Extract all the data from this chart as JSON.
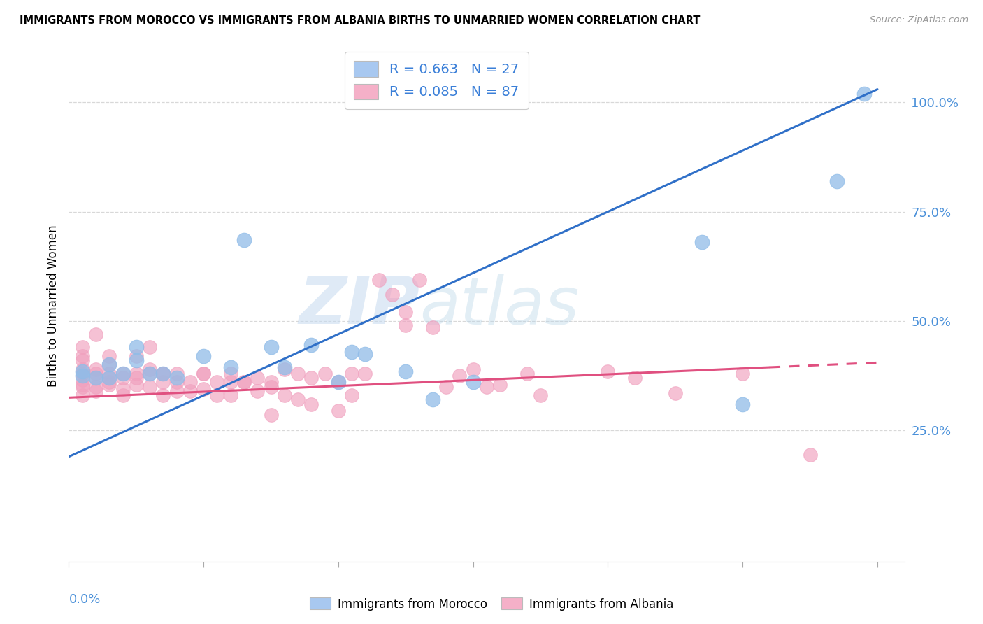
{
  "title": "IMMIGRANTS FROM MOROCCO VS IMMIGRANTS FROM ALBANIA BIRTHS TO UNMARRIED WOMEN CORRELATION CHART",
  "source": "Source: ZipAtlas.com",
  "ylabel": "Births to Unmarried Women",
  "legend_morocco": {
    "label": "Immigrants from Morocco",
    "color": "#a8c8f0",
    "R": "0.663",
    "N": "27"
  },
  "legend_albania": {
    "label": "Immigrants from Albania",
    "color": "#f5b0c8",
    "R": "0.085",
    "N": "87"
  },
  "scatter_morocco_x": [
    0.001,
    0.001,
    0.002,
    0.003,
    0.003,
    0.004,
    0.005,
    0.005,
    0.006,
    0.007,
    0.008,
    0.01,
    0.012,
    0.013,
    0.015,
    0.016,
    0.018,
    0.02,
    0.022,
    0.025,
    0.027,
    0.03,
    0.047,
    0.05,
    0.057,
    0.059,
    0.021
  ],
  "scatter_morocco_y": [
    0.385,
    0.375,
    0.37,
    0.37,
    0.4,
    0.38,
    0.41,
    0.44,
    0.38,
    0.38,
    0.37,
    0.42,
    0.395,
    0.685,
    0.44,
    0.395,
    0.445,
    0.36,
    0.425,
    0.385,
    0.32,
    0.36,
    0.68,
    0.31,
    0.82,
    1.02,
    0.43
  ],
  "scatter_albania_x": [
    0.001,
    0.001,
    0.001,
    0.001,
    0.001,
    0.001,
    0.001,
    0.001,
    0.001,
    0.002,
    0.002,
    0.002,
    0.002,
    0.002,
    0.002,
    0.003,
    0.003,
    0.003,
    0.003,
    0.003,
    0.003,
    0.004,
    0.004,
    0.004,
    0.004,
    0.005,
    0.005,
    0.005,
    0.005,
    0.006,
    0.006,
    0.006,
    0.006,
    0.007,
    0.007,
    0.007,
    0.007,
    0.008,
    0.008,
    0.008,
    0.009,
    0.009,
    0.01,
    0.01,
    0.01,
    0.011,
    0.011,
    0.012,
    0.012,
    0.012,
    0.013,
    0.013,
    0.014,
    0.014,
    0.015,
    0.015,
    0.015,
    0.016,
    0.016,
    0.017,
    0.017,
    0.018,
    0.018,
    0.019,
    0.02,
    0.02,
    0.021,
    0.021,
    0.022,
    0.023,
    0.024,
    0.025,
    0.025,
    0.026,
    0.027,
    0.028,
    0.029,
    0.03,
    0.031,
    0.032,
    0.034,
    0.035,
    0.04,
    0.042,
    0.045,
    0.05,
    0.055
  ],
  "scatter_albania_y": [
    0.35,
    0.38,
    0.42,
    0.44,
    0.365,
    0.39,
    0.33,
    0.41,
    0.355,
    0.47,
    0.35,
    0.37,
    0.38,
    0.34,
    0.39,
    0.36,
    0.42,
    0.38,
    0.355,
    0.37,
    0.4,
    0.37,
    0.33,
    0.38,
    0.345,
    0.42,
    0.38,
    0.355,
    0.37,
    0.39,
    0.44,
    0.38,
    0.35,
    0.38,
    0.36,
    0.38,
    0.33,
    0.38,
    0.36,
    0.34,
    0.34,
    0.36,
    0.38,
    0.345,
    0.38,
    0.36,
    0.33,
    0.38,
    0.36,
    0.33,
    0.36,
    0.36,
    0.37,
    0.34,
    0.36,
    0.35,
    0.285,
    0.39,
    0.33,
    0.38,
    0.32,
    0.37,
    0.31,
    0.38,
    0.36,
    0.295,
    0.38,
    0.33,
    0.38,
    0.595,
    0.56,
    0.52,
    0.49,
    0.595,
    0.485,
    0.35,
    0.375,
    0.39,
    0.35,
    0.355,
    0.38,
    0.33,
    0.385,
    0.37,
    0.335,
    0.38,
    0.195
  ],
  "morocco_line_x": [
    0.0,
    0.06
  ],
  "morocco_line_y": [
    0.19,
    1.03
  ],
  "albania_line_x": [
    0.0,
    0.06
  ],
  "albania_line_y": [
    0.325,
    0.405
  ],
  "background_color": "#ffffff",
  "grid_color": "#d8d8d8",
  "morocco_dot_color": "#90bce8",
  "albania_dot_color": "#f0a0be",
  "morocco_line_color": "#3070c8",
  "albania_line_color": "#e05080",
  "watermark_zip": "ZIP",
  "watermark_atlas": "atlas",
  "xlim": [
    0.0,
    0.062
  ],
  "ylim": [
    -0.05,
    1.12
  ],
  "ytick_vals": [
    0.25,
    0.5,
    0.75,
    1.0
  ],
  "ytick_labels": [
    "25.0%",
    "50.0%",
    "75.0%",
    "100.0%"
  ],
  "xtick_minor": [
    0.01,
    0.02,
    0.03,
    0.04,
    0.05
  ]
}
